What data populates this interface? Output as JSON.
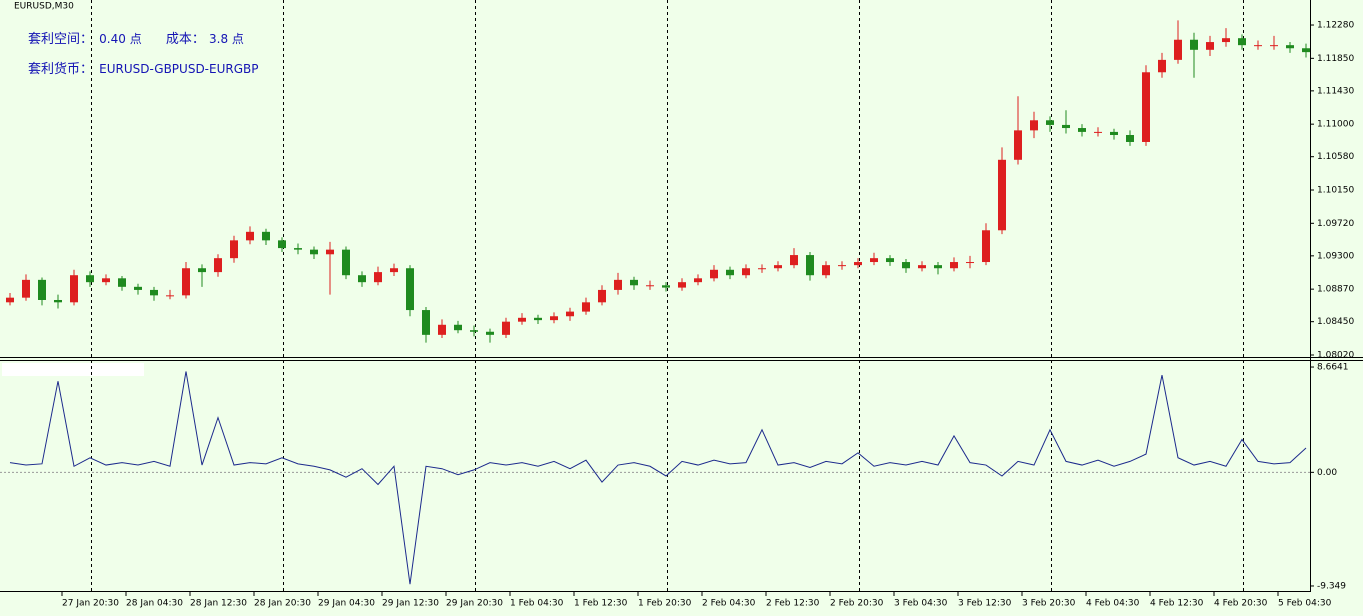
{
  "window_title": "EURUSD,M30",
  "info": {
    "spread_label": "套利空间：",
    "spread_value": "0.40 点",
    "cost_label": "成本：",
    "cost_value": "3.8 点",
    "currency_label": "套利货币：",
    "currency_value": "EURUSD-GBPUSD-EURGBP"
  },
  "time_labels": [
    "27 Jan 20:30",
    "28 Jan 04:30",
    "28 Jan 12:30",
    "28 Jan 20:30",
    "29 Jan 04:30",
    "29 Jan 12:30",
    "29 Jan 20:30",
    "1 Feb 04:30",
    "1 Feb 12:30",
    "1 Feb 20:30",
    "2 Feb 04:30",
    "2 Feb 12:30",
    "2 Feb 20:30",
    "3 Feb 04:30",
    "3 Feb 12:30",
    "3 Feb 20:30",
    "4 Feb 04:30",
    "4 Feb 12:30",
    "4 Feb 20:30",
    "5 Feb 04:30"
  ],
  "chart_data": [
    {
      "type": "candlestick",
      "up_color": "#dd1f1f",
      "down_color": "#1f8a1f",
      "ylim": [
        1.07994,
        1.12603
      ],
      "yticks": [
        {
          "value": 1.1228,
          "label": "1.12280"
        },
        {
          "value": 1.1185,
          "label": "1.11850"
        },
        {
          "value": 1.1143,
          "label": "1.11430"
        },
        {
          "value": 1.11,
          "label": "1.11000"
        },
        {
          "value": 1.1058,
          "label": "1.10580"
        },
        {
          "value": 1.1015,
          "label": "1.10150"
        },
        {
          "value": 1.0972,
          "label": "1.09720"
        },
        {
          "value": 1.093,
          "label": "1.09300"
        },
        {
          "value": 1.0887,
          "label": "1.08870"
        },
        {
          "value": 1.0845,
          "label": "1.08450"
        },
        {
          "value": 1.0802,
          "label": "1.08020"
        }
      ],
      "candles": [
        [
          1.087,
          1.0882,
          1.0866,
          1.0876
        ],
        [
          1.0876,
          1.0906,
          1.0872,
          1.0899
        ],
        [
          1.0899,
          1.0902,
          1.0866,
          1.0873
        ],
        [
          1.0873,
          1.088,
          1.0862,
          1.087
        ],
        [
          1.087,
          1.0912,
          1.0866,
          1.0905
        ],
        [
          1.0905,
          1.091,
          1.089,
          1.0896
        ],
        [
          1.0896,
          1.0906,
          1.0892,
          1.0901
        ],
        [
          1.0901,
          1.0904,
          1.0885,
          1.089
        ],
        [
          1.089,
          1.0894,
          1.088,
          1.0886
        ],
        [
          1.0886,
          1.089,
          1.0872,
          1.0879
        ],
        [
          1.0879,
          1.0886,
          1.0874,
          1.0879
        ],
        [
          1.0879,
          1.0922,
          1.0875,
          1.0914
        ],
        [
          1.0914,
          1.0919,
          1.089,
          1.0909
        ],
        [
          1.0909,
          1.0932,
          1.0903,
          1.0927
        ],
        [
          1.0927,
          1.0956,
          1.0921,
          1.095
        ],
        [
          1.095,
          1.0968,
          1.0945,
          1.0961
        ],
        [
          1.0961,
          1.0965,
          1.0944,
          1.095
        ],
        [
          1.095,
          1.0954,
          1.0935,
          1.094
        ],
        [
          1.094,
          1.0946,
          1.0932,
          1.0938
        ],
        [
          1.0938,
          1.0942,
          1.0926,
          1.0932
        ],
        [
          1.0932,
          1.0948,
          1.088,
          1.0938
        ],
        [
          1.0938,
          1.0942,
          1.09,
          1.0905
        ],
        [
          1.0905,
          1.091,
          1.089,
          1.0896
        ],
        [
          1.0896,
          1.0916,
          1.0892,
          1.0909
        ],
        [
          1.0909,
          1.092,
          1.0904,
          1.0914
        ],
        [
          1.0914,
          1.0918,
          1.0852,
          1.086
        ],
        [
          1.086,
          1.0864,
          1.0818,
          1.0828
        ],
        [
          1.0828,
          1.0848,
          1.0824,
          1.0841
        ],
        [
          1.0841,
          1.0846,
          1.083,
          1.0834
        ],
        [
          1.0834,
          1.084,
          1.0826,
          1.0832
        ],
        [
          1.0832,
          1.0836,
          1.0818,
          1.0828
        ],
        [
          1.0828,
          1.085,
          1.0824,
          1.0845
        ],
        [
          1.0845,
          1.0856,
          1.0841,
          1.085
        ],
        [
          1.085,
          1.0854,
          1.0842,
          1.0847
        ],
        [
          1.0847,
          1.0857,
          1.0843,
          1.0852
        ],
        [
          1.0852,
          1.0863,
          1.0846,
          1.0858
        ],
        [
          1.0858,
          1.0876,
          1.0854,
          1.087
        ],
        [
          1.087,
          1.0892,
          1.0866,
          1.0886
        ],
        [
          1.0886,
          1.0908,
          1.088,
          1.0899
        ],
        [
          1.0899,
          1.0903,
          1.0886,
          1.0892
        ],
        [
          1.0892,
          1.0898,
          1.0886,
          1.0892
        ],
        [
          1.0892,
          1.0896,
          1.0884,
          1.0889
        ],
        [
          1.0889,
          1.0901,
          1.0885,
          1.0896
        ],
        [
          1.0896,
          1.0906,
          1.0892,
          1.0901
        ],
        [
          1.0901,
          1.0918,
          1.0897,
          1.0912
        ],
        [
          1.0912,
          1.0916,
          1.09,
          1.0905
        ],
        [
          1.0905,
          1.0919,
          1.0901,
          1.0914
        ],
        [
          1.0914,
          1.0919,
          1.0908,
          1.0914
        ],
        [
          1.0914,
          1.0923,
          1.091,
          1.0918
        ],
        [
          1.0918,
          1.094,
          1.0914,
          1.0931
        ],
        [
          1.0931,
          1.0935,
          1.0898,
          1.0905
        ],
        [
          1.0905,
          1.0923,
          1.0901,
          1.0918
        ],
        [
          1.0918,
          1.0923,
          1.0912,
          1.0918
        ],
        [
          1.0918,
          1.0927,
          1.0914,
          1.0922
        ],
        [
          1.0922,
          1.0934,
          1.0918,
          1.0927
        ],
        [
          1.0927,
          1.0931,
          1.0917,
          1.0922
        ],
        [
          1.0922,
          1.0926,
          1.0908,
          1.0914
        ],
        [
          1.0914,
          1.0923,
          1.091,
          1.0918
        ],
        [
          1.0918,
          1.0922,
          1.0906,
          1.0914
        ],
        [
          1.0914,
          1.0928,
          1.091,
          1.0922
        ],
        [
          1.0922,
          1.093,
          1.0914,
          1.0922
        ],
        [
          1.0922,
          1.0972,
          1.0918,
          1.0963
        ],
        [
          1.0963,
          1.107,
          1.0958,
          1.1054
        ],
        [
          1.1054,
          1.1136,
          1.1048,
          1.1092
        ],
        [
          1.1092,
          1.1116,
          1.1082,
          1.1105
        ],
        [
          1.1105,
          1.111,
          1.109,
          1.1099
        ],
        [
          1.1099,
          1.1118,
          1.1088,
          1.1095
        ],
        [
          1.1095,
          1.11,
          1.1084,
          1.109
        ],
        [
          1.109,
          1.1096,
          1.1084,
          1.109
        ],
        [
          1.109,
          1.1094,
          1.108,
          1.1086
        ],
        [
          1.1086,
          1.1092,
          1.1072,
          1.1077
        ],
        [
          1.1077,
          1.1176,
          1.1072,
          1.1167
        ],
        [
          1.1167,
          1.1192,
          1.116,
          1.1183
        ],
        [
          1.1183,
          1.1234,
          1.1178,
          1.1209
        ],
        [
          1.1209,
          1.1218,
          1.116,
          1.1196
        ],
        [
          1.1196,
          1.1214,
          1.1188,
          1.1206
        ],
        [
          1.1206,
          1.1224,
          1.12,
          1.1211
        ],
        [
          1.1211,
          1.1216,
          1.1196,
          1.1202
        ],
        [
          1.1202,
          1.1208,
          1.1196,
          1.1202
        ],
        [
          1.1202,
          1.1214,
          1.1196,
          1.1202
        ],
        [
          1.1202,
          1.1206,
          1.1192,
          1.1198
        ],
        [
          1.1198,
          1.1204,
          1.1186,
          1.1193
        ]
      ]
    },
    {
      "type": "line",
      "color": "#1c2a8c",
      "ylim": [
        -9.68,
        9.16
      ],
      "yticks": [
        8.6641,
        {
          "value": 0,
          "label": "0.00"
        },
        -9.349
      ],
      "values": [
        0.8,
        0.6,
        0.7,
        7.5,
        0.5,
        1.2,
        0.6,
        0.8,
        0.6,
        0.9,
        0.5,
        8.3,
        0.6,
        4.5,
        0.6,
        0.8,
        0.7,
        1.2,
        0.7,
        0.5,
        0.2,
        -0.4,
        0.3,
        -1.0,
        0.5,
        -9.2,
        0.5,
        0.3,
        -0.2,
        0.2,
        0.8,
        0.6,
        0.8,
        0.5,
        0.9,
        0.3,
        1.0,
        -0.8,
        0.6,
        0.8,
        0.5,
        -0.3,
        0.9,
        0.6,
        1.0,
        0.7,
        0.8,
        3.5,
        0.6,
        0.8,
        0.4,
        0.9,
        0.7,
        1.6,
        0.5,
        0.8,
        0.6,
        0.9,
        0.6,
        3.0,
        0.8,
        0.6,
        -0.3,
        0.9,
        0.6,
        3.5,
        0.9,
        0.6,
        1.0,
        0.5,
        0.9,
        1.5,
        8.0,
        1.2,
        0.6,
        0.9,
        0.5,
        2.7,
        0.9,
        0.7,
        0.8,
        2.0
      ]
    }
  ]
}
